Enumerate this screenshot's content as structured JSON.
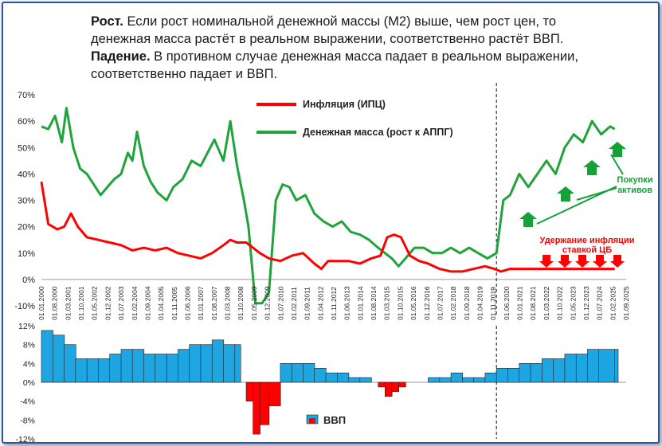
{
  "header": {
    "line1_bold": "Рост.",
    "line1_text": " Если рост номинальной денежной массы (М2) выше, чем рост цен,  то",
    "line2_text": "денежная масса растёт в реальном выражении, соответственно растёт ВВП.",
    "line3_bold": "Падение.",
    "line3_text": " В противном случае денежная масса падает в реальном выражении,",
    "line4_text": "соответственно падает и ВВП."
  },
  "colors": {
    "inflation": "#ff0000",
    "money": "#1fa33a",
    "gdp_pos": "#1ea6e3",
    "gdp_neg": "#ff0000",
    "arrow": "#16a038",
    "annot_red": "#ff0000"
  },
  "annotations": {
    "buy_assets": [
      "Покупки",
      "активов"
    ],
    "hold_inflation": [
      "Удержание инфляции",
      "ставкой ЦБ"
    ]
  },
  "chart_data": [
    {
      "type": "line",
      "ylim": [
        -10,
        70
      ],
      "yticks": [
        "70%",
        "60%",
        "50%",
        "40%",
        "30%",
        "20%",
        "10%",
        "0%",
        "-10%"
      ],
      "grid": false,
      "legend": "top-center",
      "vline_at": 2020.0,
      "x_tick_labels": [
        "01.01.2000",
        "01.08.2000",
        "01.03.2001",
        "01.10.2001",
        "01.05.2002",
        "01.12.2002",
        "01.07.2003",
        "01.02.2004",
        "01.09.2004",
        "01.04.2005",
        "01.11.2005",
        "01.06.2006",
        "01.01.2007",
        "01.08.2007",
        "01.03.2008",
        "01.10.2008",
        "01.05.2009",
        "01.12.2009",
        "01.07.2010",
        "01.02.2011",
        "01.09.2011",
        "01.04.2012",
        "01.11.2012",
        "01.06.2013",
        "01.01.2014",
        "01.08.2014",
        "01.03.2015",
        "01.10.2015",
        "01.05.2016",
        "01.12.2016",
        "01.07.2017",
        "01.02.2018",
        "01.09.2018",
        "01.04.2019",
        "01.11.2019",
        "01.06.2020",
        "01.01.2021",
        "01.08.2021",
        "01.03.2022",
        "01.10.2022",
        "01.05.2023",
        "01.12.2023",
        "01.07.2024",
        "01.02.2025",
        "01.09.2025"
      ],
      "series": [
        {
          "name": "Инфляция (ИПЦ)",
          "x": [
            2000.0,
            2000.3,
            2000.7,
            2001.0,
            2001.3,
            2001.6,
            2002.0,
            2002.5,
            2003.0,
            2003.5,
            2004.0,
            2004.5,
            2005.0,
            2005.5,
            2006.0,
            2006.5,
            2007.0,
            2007.5,
            2008.0,
            2008.3,
            2008.6,
            2009.0,
            2009.3,
            2009.6,
            2010.0,
            2010.5,
            2011.0,
            2011.5,
            2012.0,
            2012.3,
            2012.6,
            2013.0,
            2013.5,
            2014.0,
            2014.5,
            2014.9,
            2015.2,
            2015.5,
            2015.8,
            2016.2,
            2016.6,
            2017.0,
            2017.5,
            2018.0,
            2018.5,
            2019.0,
            2019.5,
            2019.9,
            2020.2,
            2020.6,
            2021.0,
            2022.0,
            2023.0,
            2024.0,
            2025.2
          ],
          "y": [
            37,
            21,
            19,
            20,
            25,
            20,
            16,
            15,
            14,
            13,
            11,
            12,
            11,
            12,
            10,
            9,
            8,
            10,
            13,
            15,
            14,
            14,
            12,
            10,
            8,
            7,
            9,
            10,
            6,
            4,
            7,
            7,
            7,
            6,
            8,
            9,
            16,
            17,
            16,
            9,
            7,
            6,
            4,
            3,
            3,
            4,
            5,
            4,
            3,
            4,
            4,
            4,
            4,
            4,
            4
          ]
        },
        {
          "name": "Денежная масса (рост к АППГ)",
          "x": [
            2000.0,
            2000.3,
            2000.6,
            2000.9,
            2001.1,
            2001.4,
            2001.7,
            2002.0,
            2002.3,
            2002.6,
            2002.9,
            2003.2,
            2003.5,
            2003.8,
            2004.0,
            2004.2,
            2004.5,
            2004.8,
            2005.1,
            2005.5,
            2005.8,
            2006.2,
            2006.6,
            2007.0,
            2007.3,
            2007.6,
            2008.0,
            2008.3,
            2008.6,
            2008.9,
            2009.1,
            2009.4,
            2009.7,
            2010.0,
            2010.3,
            2010.6,
            2010.9,
            2011.2,
            2011.6,
            2012.0,
            2012.4,
            2012.8,
            2013.2,
            2013.6,
            2014.0,
            2014.4,
            2014.8,
            2015.1,
            2015.4,
            2015.7,
            2016.0,
            2016.4,
            2016.8,
            2017.2,
            2017.6,
            2018.0,
            2018.4,
            2018.8,
            2019.2,
            2019.6,
            2020.0,
            2020.3,
            2020.6,
            2021.0,
            2021.4,
            2021.8,
            2022.2,
            2022.6,
            2023.0,
            2023.4,
            2023.8,
            2024.2,
            2024.6,
            2025.0,
            2025.2
          ],
          "y": [
            58,
            57,
            62,
            52,
            65,
            50,
            42,
            40,
            36,
            32,
            35,
            38,
            40,
            48,
            45,
            56,
            43,
            37,
            33,
            30,
            35,
            38,
            45,
            43,
            48,
            53,
            45,
            60,
            43,
            30,
            20,
            -9,
            -9,
            -5,
            30,
            36,
            35,
            30,
            32,
            25,
            22,
            20,
            22,
            18,
            17,
            15,
            12,
            10,
            8,
            5,
            8,
            12,
            12,
            10,
            10,
            12,
            10,
            12,
            10,
            8,
            10,
            30,
            32,
            40,
            35,
            40,
            45,
            40,
            50,
            55,
            52,
            60,
            55,
            58,
            57
          ]
        }
      ]
    },
    {
      "type": "area",
      "ylim": [
        -12,
        12
      ],
      "yticks": [
        "12%",
        "8%",
        "4%",
        "0%",
        "-4%",
        "-8%",
        "-12%"
      ],
      "legend": "bottom-center",
      "series": [
        {
          "name": "ВВП",
          "x": [
            2000.0,
            2000.5,
            2001.0,
            2001.5,
            2002.0,
            2002.5,
            2003.0,
            2003.5,
            2004.0,
            2004.5,
            2005.0,
            2005.5,
            2006.0,
            2006.5,
            2007.0,
            2007.5,
            2008.0,
            2008.5,
            2008.75,
            2009.0,
            2009.3,
            2009.6,
            2010.0,
            2010.5,
            2011.0,
            2011.5,
            2012.0,
            2012.5,
            2013.0,
            2013.5,
            2014.0,
            2014.5,
            2014.8,
            2015.1,
            2015.4,
            2015.7,
            2016.0,
            2016.5,
            2017.0,
            2017.5,
            2018.0,
            2018.5,
            2019.0,
            2019.5,
            2020.0,
            2020.5,
            2021.0,
            2021.5,
            2022.0,
            2022.5,
            2023.0,
            2023.5,
            2024.0,
            2024.5,
            2025.2
          ],
          "y": [
            11,
            10,
            8,
            5,
            5,
            5,
            6,
            7,
            7,
            6,
            6,
            6,
            7,
            8,
            8,
            9,
            8,
            8,
            0,
            -4,
            -11,
            -9,
            -5,
            4,
            4,
            4,
            3,
            2,
            2,
            1,
            1,
            0,
            -1,
            -3,
            -2,
            -1,
            0,
            0,
            1,
            1,
            2,
            1,
            1,
            2,
            3,
            3,
            4,
            4,
            5,
            5,
            6,
            6,
            7,
            7,
            7
          ]
        }
      ]
    }
  ]
}
